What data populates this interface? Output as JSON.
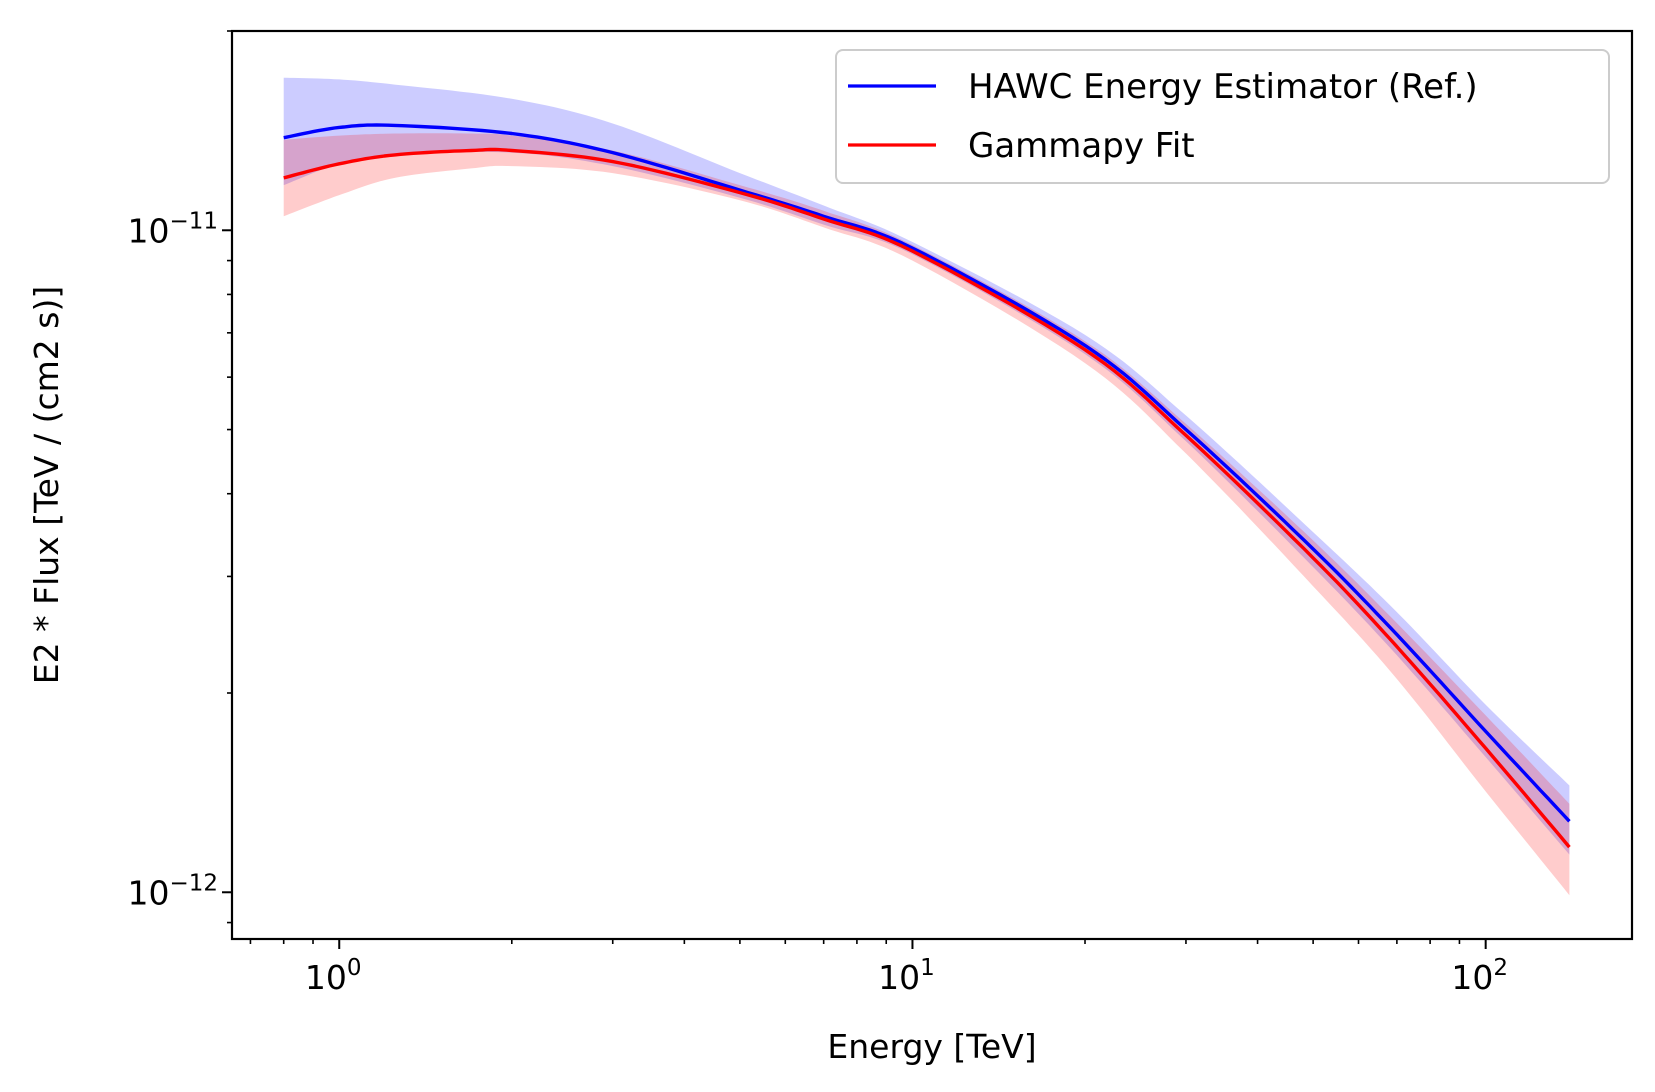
{
  "chart_data": {
    "type": "line",
    "title": "",
    "xlabel": "Energy [TeV]",
    "ylabel": "E2 * Flux [TeV / (cm2 s)]",
    "x_scale": "log",
    "y_scale": "log",
    "xlim": [
      0.65,
      180
    ],
    "ylim": [
      8.5e-13,
      2e-11
    ],
    "x_major_ticks": [
      {
        "value": 1,
        "label": "10",
        "exp": "0"
      },
      {
        "value": 10,
        "label": "10",
        "exp": "1"
      },
      {
        "value": 100,
        "label": "10",
        "exp": "2"
      }
    ],
    "y_major_ticks": [
      {
        "value": 1e-11,
        "label": "10",
        "exp": "−11"
      },
      {
        "value": 1e-12,
        "label": "10",
        "exp": "−12"
      }
    ],
    "legend_position": "upper right",
    "grid": false,
    "series": [
      {
        "name": "HAWC Energy Estimator (Ref.)",
        "color": "#0000ff",
        "band_color": "#0000ff",
        "x": [
          0.8,
          1.0,
          1.25,
          2.0,
          3.0,
          5.0,
          7.0,
          10,
          20,
          30,
          50,
          70,
          100,
          140
        ],
        "y": [
          1.38e-11,
          1.43e-11,
          1.44e-11,
          1.4e-11,
          1.31e-11,
          1.15e-11,
          1.05e-11,
          9.4e-12,
          6.7e-12,
          5e-12,
          3.3e-12,
          2.45e-12,
          1.75e-12,
          1.28e-12
        ],
        "y_low": [
          1.17e-11,
          1.26e-11,
          1.3e-11,
          1.31e-11,
          1.25e-11,
          1.12e-11,
          1.02e-11,
          9.2e-12,
          6.5e-12,
          4.8e-12,
          3.1e-12,
          2.28e-12,
          1.6e-12,
          1.14e-12
        ],
        "y_high": [
          1.7e-11,
          1.69e-11,
          1.66e-11,
          1.58e-11,
          1.45e-11,
          1.22e-11,
          1.09e-11,
          9.6e-12,
          6.95e-12,
          5.25e-12,
          3.5e-12,
          2.65e-12,
          1.92e-12,
          1.45e-12
        ]
      },
      {
        "name": "Gammapy Fit",
        "color": "#ff0000",
        "band_color": "#ff0000",
        "x": [
          0.8,
          1.0,
          1.25,
          1.7,
          2.0,
          3.0,
          5.0,
          7.0,
          10,
          20,
          30,
          50,
          70,
          100,
          140
        ],
        "y": [
          1.2e-11,
          1.26e-11,
          1.3e-11,
          1.32e-11,
          1.32e-11,
          1.27e-11,
          1.14e-11,
          1.04e-11,
          9.3e-12,
          6.6e-12,
          4.9e-12,
          3.2e-12,
          2.35e-12,
          1.65e-12,
          1.17e-12
        ],
        "y_low": [
          1.05e-11,
          1.13e-11,
          1.2e-11,
          1.24e-11,
          1.25e-11,
          1.22e-11,
          1.11e-11,
          1.01e-11,
          9e-12,
          6.3e-12,
          4.6e-12,
          2.9e-12,
          2.1e-12,
          1.42e-12,
          9.9e-13
        ],
        "y_high": [
          1.37e-11,
          1.39e-11,
          1.4e-11,
          1.4e-11,
          1.39e-11,
          1.32e-11,
          1.17e-11,
          1.07e-11,
          9.5e-12,
          6.8e-12,
          5.1e-12,
          3.4e-12,
          2.55e-12,
          1.85e-12,
          1.36e-12
        ]
      }
    ]
  }
}
